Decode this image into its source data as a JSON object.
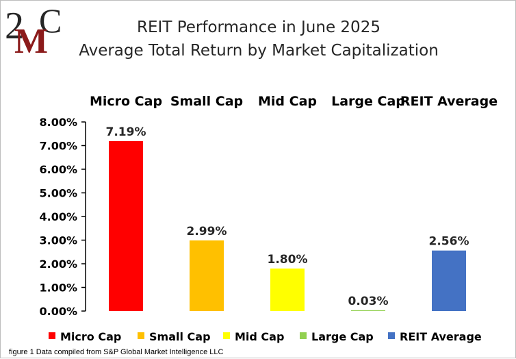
{
  "logo": {
    "text_top": "2",
    "text_m": "M",
    "text_c": "C",
    "color_dark": "#262626",
    "color_red": "#8b1a1a"
  },
  "footnote": "figure 1 Data compiled from S&P Global Market Intelligence LLC",
  "chart_data": {
    "type": "bar",
    "title": [
      "REIT Performance  in June 2025",
      "Average Total Return by Market Capitalization"
    ],
    "categories": [
      "Micro Cap",
      "Small Cap",
      "Mid Cap",
      "Large Cap",
      "REIT Average"
    ],
    "values": [
      7.19,
      2.99,
      1.8,
      0.03,
      2.56
    ],
    "data_labels": [
      "7.19%",
      "2.99%",
      "1.80%",
      "0.03%",
      "2.56%"
    ],
    "colors": [
      "#ff0000",
      "#ffc000",
      "#ffff00",
      "#92d050",
      "#4472c4"
    ],
    "yticks": [
      0,
      1,
      2,
      3,
      4,
      5,
      6,
      7,
      8
    ],
    "ytick_labels": [
      "0.00%",
      "1.00%",
      "2.00%",
      "3.00%",
      "4.00%",
      "5.00%",
      "6.00%",
      "7.00%",
      "8.00%"
    ],
    "ylim": [
      0,
      8
    ],
    "xlabel": "",
    "ylabel": "",
    "grid": false,
    "category_labels_position": "top",
    "legend": {
      "position": "bottom",
      "entries": [
        "Micro Cap",
        "Small Cap",
        "Mid Cap",
        "Large Cap",
        "REIT Average"
      ]
    }
  }
}
